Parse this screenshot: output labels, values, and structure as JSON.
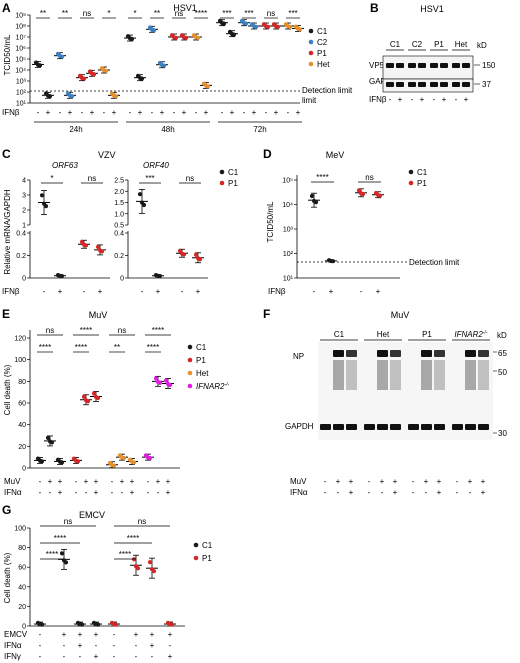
{
  "colors": {
    "C1": "#1a1a1a",
    "C2": "#3b7fc4",
    "P1": "#d62728",
    "Het": "#e8902b",
    "IFNAR2": "#e31ae3"
  },
  "panels": {
    "A": "A",
    "B": "B",
    "C": "C",
    "D": "D",
    "E": "E",
    "F": "F",
    "G": "G"
  },
  "panelA": {
    "title": "HSV1",
    "ylabel": "TCID50/mL",
    "yticks": [
      "10⁹",
      "10⁸",
      "10⁷",
      "10⁶",
      "10⁵",
      "10⁴",
      "10³",
      "10²",
      "10¹"
    ],
    "xrow_label": "IFNβ",
    "treat": [
      "-",
      "+"
    ],
    "times": [
      "24h",
      "48h",
      "72h"
    ],
    "detection": "Detection limit",
    "sig": [
      [
        "**",
        "**",
        "ns",
        "*"
      ],
      [
        "*",
        "**",
        "ns",
        "****"
      ],
      [
        "***",
        "***",
        "ns",
        "***"
      ]
    ],
    "legend": [
      "C1",
      "C2",
      "P1",
      "Het"
    ]
  },
  "panelB": {
    "title": "HSV1",
    "kd": "kD",
    "lanes": [
      "C1",
      "C2",
      "P1",
      "Het"
    ],
    "bands": [
      "VP5",
      "GAPDH"
    ],
    "markers": [
      "150",
      "37"
    ],
    "xrow_label": "IFNβ",
    "treat": [
      "-",
      "+"
    ]
  },
  "panelC": {
    "virus": "VZV",
    "ylabel": "Relative mRNA/GAPDH",
    "genes": [
      "ORF63",
      "ORF40"
    ],
    "yticks_left": [
      "0",
      "0.2",
      "0.4",
      "1",
      "2",
      "3",
      "4"
    ],
    "yticks_right": [
      "0",
      "0.2",
      "0.4",
      "0.5",
      "1.0",
      "1.5",
      "2.0",
      "2.5"
    ],
    "sig": [
      "*",
      "ns",
      "***",
      "ns"
    ],
    "xrow_label": "IFNβ",
    "treat": [
      "-",
      "+"
    ],
    "legend": [
      "C1",
      "P1"
    ]
  },
  "panelD": {
    "title": "MeV",
    "ylabel": "TCID50/mL",
    "yticks": [
      "10⁵",
      "10⁴",
      "10³",
      "10²",
      "10¹"
    ],
    "sig": [
      "****",
      "ns"
    ],
    "detection": "Detection limit",
    "xrow_label": "IFNβ",
    "treat": [
      "-",
      "+"
    ],
    "legend": [
      "C1",
      "P1"
    ]
  },
  "panelE": {
    "title": "MuV",
    "ylabel": "Cell death (%)",
    "yticks": [
      "0",
      "20",
      "40",
      "60",
      "80",
      "100",
      "120"
    ],
    "sig_top": [
      "ns",
      "****",
      "ns",
      "****"
    ],
    "sig_low": [
      "****",
      "****",
      "**",
      "****"
    ],
    "rows": [
      "MuV",
      "IFNα"
    ],
    "legend": [
      "C1",
      "P1",
      "Het",
      "IFNAR2"
    ],
    "sup": "-/-"
  },
  "panelF": {
    "title": "MuV",
    "kd": "kD",
    "lanes": [
      "C1",
      "Het",
      "P1",
      "IFNAR2"
    ],
    "sup": "-/-",
    "bands": [
      "NP",
      "GAPDH"
    ],
    "markers": [
      "65",
      "50",
      "30"
    ],
    "rows": [
      "MuV",
      "IFNα"
    ]
  },
  "panelG": {
    "title": "EMCV",
    "ylabel": "Cell death (%)",
    "yticks": [
      "0",
      "20",
      "40",
      "60",
      "80",
      "100"
    ],
    "sig": [
      "ns",
      "ns",
      "****",
      "****",
      "****",
      "****"
    ],
    "rows": [
      "EMCV",
      "IFNα",
      "IFNγ"
    ],
    "legend": [
      "C1",
      "P1"
    ]
  },
  "chart_data": [
    {
      "type": "scatter",
      "panel": "A",
      "title": "HSV1",
      "ylabel": "TCID50/mL",
      "log_y": true,
      "ylim": [
        10,
        1000000000
      ],
      "categories": [
        "24h C1 -",
        "24h C1 +",
        "24h C2 -",
        "24h C2 +",
        "24h P1 -",
        "24h P1 +",
        "24h Het -",
        "24h Het +",
        "48h C1 -",
        "48h C1 +",
        "48h C2 -",
        "48h C2 +",
        "48h P1 -",
        "48h P1 +",
        "48h Het -",
        "48h Het +",
        "72h C1 -",
        "72h C1 +",
        "72h C2 -",
        "72h C2 +",
        "72h P1 -",
        "72h P1 +",
        "72h Het -",
        "72h Het +"
      ],
      "values": [
        32000,
        50,
        200000,
        50,
        2000,
        5000,
        10000,
        50,
        8000000,
        2000,
        50000000,
        30000,
        10000000,
        10000000,
        10000000,
        400,
        200000000,
        20000000,
        200000000,
        100000000,
        100000000,
        100000000,
        100000000,
        60000000
      ]
    },
    {
      "type": "scatter",
      "panel": "C",
      "title": "ORF63",
      "ylabel": "Relative mRNA/GAPDH",
      "categories": [
        "C1 -",
        "C1 +",
        "P1 -",
        "P1 +"
      ],
      "values": [
        2.5,
        0.02,
        0.3,
        0.25
      ]
    },
    {
      "type": "scatter",
      "panel": "C",
      "title": "ORF40",
      "ylabel": "Relative mRNA/GAPDH",
      "categories": [
        "C1 -",
        "C1 +",
        "P1 -",
        "P1 +"
      ],
      "values": [
        1.55,
        0.02,
        0.22,
        0.18
      ]
    },
    {
      "type": "scatter",
      "panel": "D",
      "title": "MeV",
      "ylabel": "TCID50/mL",
      "log_y": true,
      "ylim": [
        10,
        100000
      ],
      "categories": [
        "C1 -",
        "C1 +",
        "P1 -",
        "P1 +"
      ],
      "values": [
        15000,
        50,
        30000,
        25000
      ]
    },
    {
      "type": "scatter",
      "panel": "E",
      "title": "MuV",
      "ylabel": "Cell death (%)",
      "ylim": [
        0,
        120
      ],
      "categories": [
        "C1 mock",
        "C1 MuV",
        "C1 MuV+IFNα",
        "P1 mock",
        "P1 MuV",
        "P1 MuV+IFNα",
        "Het mock",
        "Het MuV",
        "Het MuV+IFNα",
        "IFNAR2 mock",
        "IFNAR2 MuV",
        "IFNAR2 MuV+IFNα"
      ],
      "values": [
        7,
        25,
        6,
        7,
        63,
        66,
        3,
        10,
        6,
        10,
        80,
        78
      ]
    },
    {
      "type": "scatter",
      "panel": "G",
      "title": "EMCV",
      "ylabel": "Cell death (%)",
      "ylim": [
        0,
        100
      ],
      "categories": [
        "C1 mock",
        "C1 EMCV",
        "C1 EMCV+IFNα",
        "C1 EMCV+IFNγ",
        "P1 mock",
        "P1 EMCV",
        "P1 EMCV+IFNα",
        "P1 EMCV+IFNγ"
      ],
      "values": [
        2,
        68,
        2,
        2,
        2,
        62,
        59,
        2
      ]
    }
  ]
}
